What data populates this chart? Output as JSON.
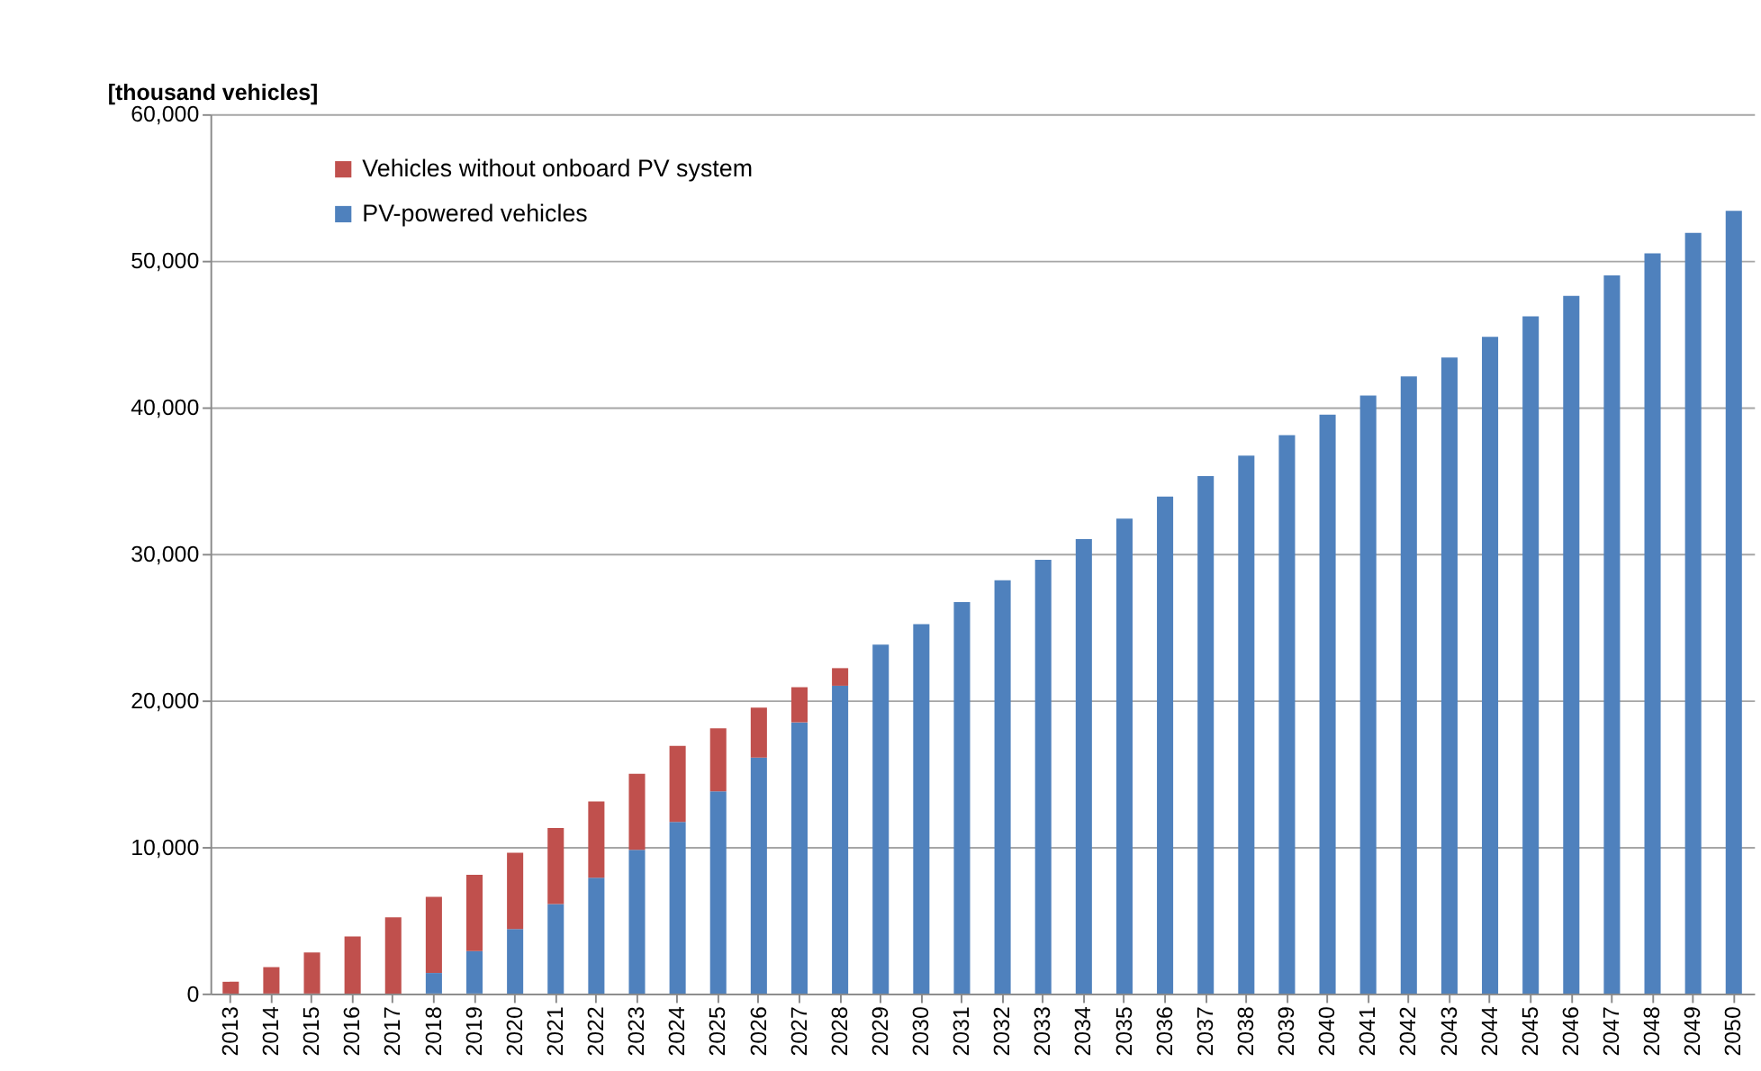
{
  "chart_data": {
    "type": "bar",
    "stacked": true,
    "ylabel": "[thousand vehicles]",
    "categories": [
      "2013",
      "2014",
      "2015",
      "2016",
      "2017",
      "2018",
      "2019",
      "2020",
      "2021",
      "2022",
      "2023",
      "2024",
      "2025",
      "2026",
      "2027",
      "2028",
      "2029",
      "2030",
      "2031",
      "2032",
      "2033",
      "2034",
      "2035",
      "2036",
      "2037",
      "2038",
      "2039",
      "2040",
      "2041",
      "2042",
      "2043",
      "2044",
      "2045",
      "2046",
      "2047",
      "2048",
      "2049",
      "2050"
    ],
    "series": [
      {
        "name": "PV-powered vehicles",
        "color": "#4f81bd",
        "values": [
          0,
          0,
          0,
          0,
          0,
          1400,
          2900,
          4400,
          6100,
          7900,
          9800,
          11700,
          13800,
          16100,
          18500,
          21000,
          23800,
          25200,
          26700,
          28200,
          29600,
          31000,
          32400,
          33900,
          35300,
          36700,
          38100,
          39500,
          40800,
          42100,
          43400,
          44800,
          46200,
          47600,
          49000,
          50500,
          51900,
          53400
        ]
      },
      {
        "name": "Vehicles without onboard PV system",
        "color": "#c0504d",
        "values": [
          800,
          1800,
          2800,
          3900,
          5200,
          5200,
          5200,
          5200,
          5200,
          5200,
          5200,
          5200,
          4300,
          3400,
          2400,
          1200,
          0,
          0,
          0,
          0,
          0,
          0,
          0,
          0,
          0,
          0,
          0,
          0,
          0,
          0,
          0,
          0,
          0,
          0,
          0,
          0,
          0,
          0
        ]
      }
    ],
    "ylim": [
      0,
      60000
    ],
    "yticks": [
      0,
      {
        "value": 10000,
        "label": "10,000"
      },
      {
        "value": 20000,
        "label": "20,000"
      },
      {
        "value": 30000,
        "label": "30,000"
      },
      {
        "value": 40000,
        "label": "40,000"
      },
      {
        "value": 50000,
        "label": "50,000"
      },
      {
        "value": 60000,
        "label": "60,000"
      }
    ],
    "grid": "y",
    "legend": "top left"
  }
}
